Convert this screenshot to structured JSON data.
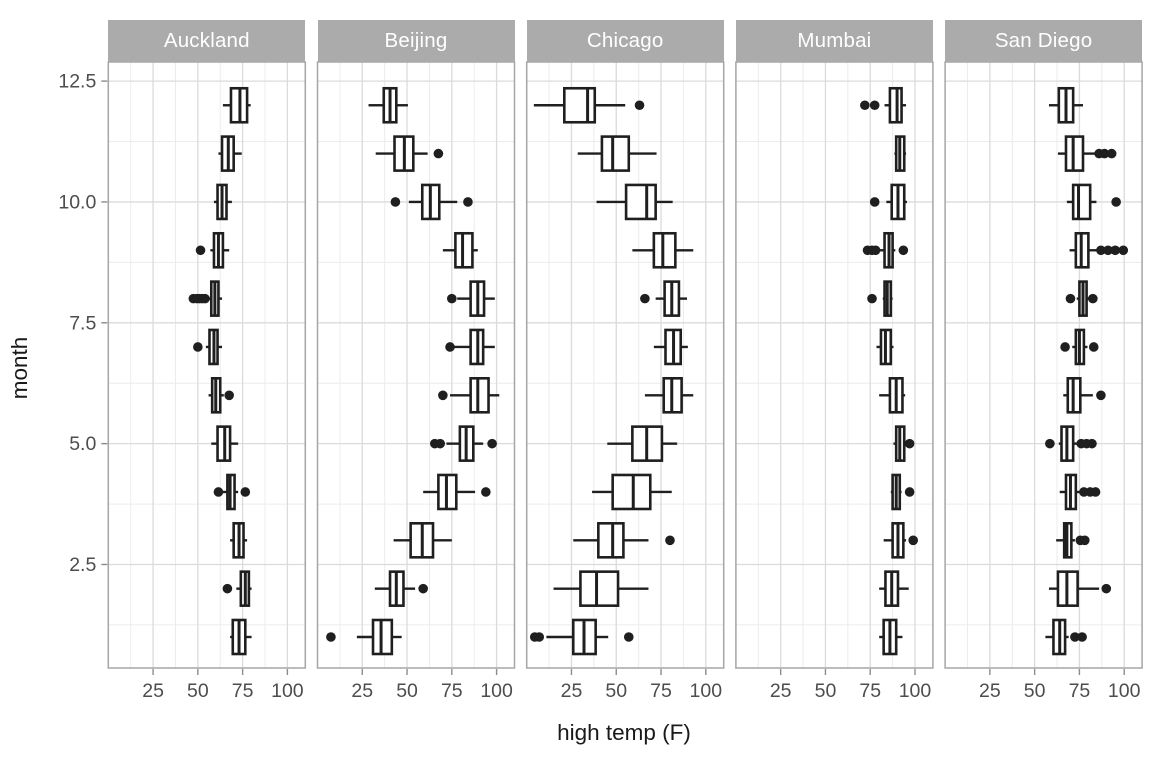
{
  "chart_data": {
    "type": "boxplot",
    "orientation": "horizontal",
    "xlabel": "high temp (F)",
    "ylabel": "month",
    "x_ticks": [
      {
        "label": "25",
        "value": 25
      },
      {
        "label": "50",
        "value": 50
      },
      {
        "label": "75",
        "value": 75
      },
      {
        "label": "100",
        "value": 100
      }
    ],
    "y_ticks": [
      {
        "label": "12.5",
        "value": 12.5
      },
      {
        "label": "10.0",
        "value": 10
      },
      {
        "label": "7.5",
        "value": 7.5
      },
      {
        "label": "5.0",
        "value": 5
      },
      {
        "label": "2.5",
        "value": 2.5
      }
    ],
    "x_domain": [
      0,
      110
    ],
    "y_domain": [
      0.4,
      12.9
    ],
    "grid": {
      "x_major": [
        25,
        50,
        75,
        100
      ],
      "x_minor": [
        12.5,
        37.5,
        62.5,
        87.5
      ],
      "y_major": [
        2.5,
        5,
        7.5,
        10,
        12.5
      ],
      "y_minor": [
        1.25,
        3.75,
        6.25,
        8.75,
        11.25
      ]
    },
    "legend": "none",
    "box_format": [
      "month",
      "whisker_low",
      "q1",
      "median",
      "q3",
      "whisker_high",
      "outliers"
    ],
    "facets": [
      {
        "city": "Auckland",
        "boxes": [
          [
            1,
            68,
            69.5,
            73,
            76.5,
            80,
            []
          ],
          [
            2,
            71.5,
            74,
            76.5,
            78.5,
            80,
            [
              66.5
            ]
          ],
          [
            3,
            68,
            70,
            73,
            75.5,
            77.5,
            []
          ],
          [
            4,
            63.5,
            66.5,
            68,
            70.5,
            72.5,
            [
              61.5,
              76.5
            ]
          ],
          [
            5,
            57.5,
            61,
            65,
            68,
            72.5,
            []
          ],
          [
            6,
            56,
            58,
            60,
            62.5,
            64.5,
            [
              67.5
            ]
          ],
          [
            7,
            54.5,
            56.5,
            59,
            61,
            63.5,
            [
              50
            ]
          ],
          [
            8,
            55.5,
            57.5,
            59.5,
            61.5,
            63.5,
            [
              47.5,
              49.5,
              51,
              52.5,
              54
            ]
          ],
          [
            9,
            57,
            59,
            61.5,
            64,
            67.5,
            [
              51.5
            ]
          ],
          [
            10,
            59,
            61,
            63.5,
            66,
            69,
            []
          ],
          [
            11,
            61.5,
            63.5,
            67,
            70,
            74.5,
            []
          ],
          [
            12,
            64,
            68.5,
            73.5,
            77.5,
            79.5,
            []
          ]
        ]
      },
      {
        "city": "Beijing",
        "boxes": [
          [
            1,
            22,
            31,
            35.5,
            41.5,
            47,
            [
              7.5
            ]
          ],
          [
            2,
            32,
            40.5,
            44,
            48,
            54.5,
            [
              59
            ]
          ],
          [
            3,
            42.5,
            52,
            58.5,
            64.5,
            75,
            []
          ],
          [
            4,
            59,
            67.5,
            72,
            77.5,
            88,
            [
              94
            ]
          ],
          [
            5,
            72,
            79.5,
            83,
            87,
            92.5,
            [
              65.5,
              68.5,
              97.5
            ]
          ],
          [
            6,
            74,
            85.5,
            89.5,
            95.5,
            101.5,
            [
              70
            ]
          ],
          [
            7,
            76.5,
            85.5,
            89.5,
            92.5,
            99,
            [
              74
            ]
          ],
          [
            8,
            78,
            85.5,
            89.5,
            93,
            99,
            [
              75
            ]
          ],
          [
            9,
            70,
            77,
            81,
            86.5,
            89.5,
            []
          ],
          [
            10,
            51,
            58.5,
            63,
            68,
            78,
            [
              43.5,
              84
            ]
          ],
          [
            11,
            32.5,
            43,
            48.5,
            53.5,
            61.5,
            [
              67.5
            ]
          ],
          [
            12,
            28.5,
            37,
            40.5,
            44,
            50.5,
            []
          ]
        ]
      },
      {
        "city": "Chicago",
        "boxes": [
          [
            1,
            11,
            26,
            32,
            38.5,
            45.5,
            [
              4.5,
              7,
              57
            ]
          ],
          [
            2,
            15,
            30,
            39,
            51,
            68,
            []
          ],
          [
            3,
            26,
            40,
            48,
            54,
            68,
            [
              80
            ]
          ],
          [
            4,
            36.5,
            48,
            59.5,
            69,
            81,
            []
          ],
          [
            5,
            45,
            59,
            67,
            75.5,
            84,
            []
          ],
          [
            6,
            66,
            76.5,
            81,
            86.5,
            93,
            []
          ],
          [
            7,
            71,
            77.5,
            82,
            86,
            90,
            []
          ],
          [
            8,
            72,
            77,
            81,
            85,
            89.5,
            [
              66
            ]
          ],
          [
            9,
            59,
            71,
            76,
            83,
            93,
            []
          ],
          [
            10,
            39,
            55.5,
            67,
            72,
            81.5,
            []
          ],
          [
            11,
            28.5,
            42,
            48,
            57,
            72.5,
            []
          ],
          [
            12,
            4,
            21,
            34,
            38,
            55,
            [
              63
            ]
          ]
        ]
      },
      {
        "city": "Mumbai",
        "boxes": [
          [
            1,
            80,
            82.5,
            86,
            89.5,
            93,
            []
          ],
          [
            2,
            80,
            83.5,
            87,
            90.5,
            96.5,
            []
          ],
          [
            3,
            82.5,
            87.5,
            90.5,
            93.5,
            95,
            [
              99
            ]
          ],
          [
            4,
            86.5,
            87.5,
            89.5,
            91.5,
            92.5,
            [
              97
            ]
          ],
          [
            5,
            88,
            89.5,
            91.5,
            94,
            95,
            [
              97
            ]
          ],
          [
            6,
            80,
            86,
            89.5,
            93,
            94.5,
            []
          ],
          [
            7,
            78.5,
            81,
            83.5,
            86.5,
            88,
            []
          ],
          [
            8,
            82,
            83,
            84.5,
            86.5,
            87.5,
            [
              76
            ]
          ],
          [
            9,
            80.5,
            83,
            85.5,
            87.5,
            89,
            [
              73.5,
              76,
              78,
              93.5
            ]
          ],
          [
            10,
            84,
            87,
            90.5,
            94,
            95.5,
            [
              77.5
            ]
          ],
          [
            11,
            88.5,
            89.5,
            91.5,
            94,
            95,
            []
          ],
          [
            12,
            83,
            86,
            90,
            92.5,
            95,
            [
              72,
              77.5
            ]
          ]
        ]
      },
      {
        "city": "San Diego",
        "boxes": [
          [
            1,
            56,
            60.5,
            64,
            67,
            69,
            [
              72.5,
              76.5
            ]
          ],
          [
            2,
            58,
            63,
            68,
            74,
            86,
            [
              90
            ]
          ],
          [
            3,
            62,
            66.5,
            68,
            70.5,
            72.5,
            [
              75.5,
              78
            ]
          ],
          [
            4,
            64,
            67.5,
            70,
            73,
            75,
            [
              77.5,
              81,
              84
            ]
          ],
          [
            5,
            63.5,
            65,
            68,
            71.5,
            73.5,
            [
              58.5,
              76,
              79,
              82
            ]
          ],
          [
            6,
            66,
            68.5,
            71.5,
            75.5,
            82.5,
            [
              87
            ]
          ],
          [
            7,
            71,
            73,
            75,
            77.5,
            79.5,
            [
              67,
              83
            ]
          ],
          [
            8,
            73.5,
            75,
            77,
            79,
            81,
            [
              70,
              82.5
            ]
          ],
          [
            9,
            69.5,
            73,
            76,
            80,
            84.5,
            [
              87,
              91,
              95,
              99.5
            ]
          ],
          [
            10,
            68,
            71.5,
            74.5,
            81,
            84.5,
            [
              95.5
            ]
          ],
          [
            11,
            63,
            67.5,
            71.5,
            77,
            83.5,
            [
              86,
              89,
              93
            ]
          ],
          [
            12,
            58,
            63.5,
            67.5,
            71.5,
            77,
            []
          ]
        ]
      }
    ]
  },
  "colors": {
    "background": "#FFFFFF",
    "strip_bg": "#ABABAB",
    "strip_text": "#FFFFFF",
    "panel_border": "#A6A6A6",
    "grid_major": "#DBDBDB",
    "grid_minor": "#ECECEC",
    "box_stroke": "#1F1F1F",
    "box_fill": "#FFFFFF",
    "axis_text": "#4D4D4D",
    "axis_title": "#1A1A1A",
    "tick_mark": "#8C8C8C"
  }
}
